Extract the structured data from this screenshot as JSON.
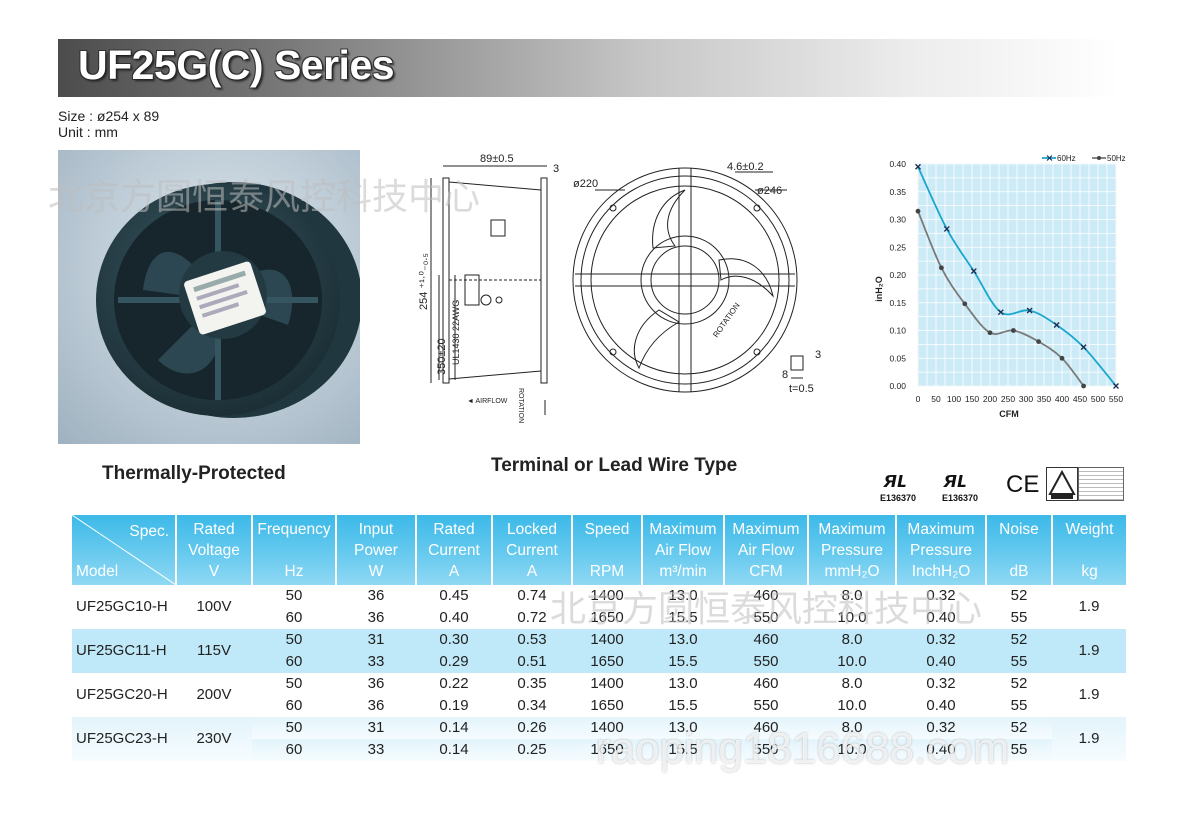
{
  "header": {
    "title": "UF25G(C) Series"
  },
  "size_info": {
    "size": "Size : ø254 x 89",
    "unit": "Unit : mm"
  },
  "captions": {
    "photo": "Thermally-Protected",
    "drawing": "Terminal or Lead Wire Type"
  },
  "drawing": {
    "side": {
      "depth": "89±0.5",
      "flange": "3",
      "height": "254 ⁺¹·⁰₋₀.₅",
      "lead": "350±20",
      "wire": "UL1430 22AWG",
      "airflow": "◄ AIRFLOW",
      "rotation": "ROTATION"
    },
    "front": {
      "hole": "4.6±0.2",
      "d220": "ø220",
      "d246": "ø246",
      "rotation": "ROTATION",
      "tab_w": "8",
      "tab_h": "3",
      "thickness": "t=0.5"
    }
  },
  "certifications": {
    "ul_file_1": "E136370",
    "ul_file_2": "E136370",
    "ce": "CE"
  },
  "watermark": {
    "cn": "北京方圆恒泰风控科技中心",
    "url": "raoping1816688.com"
  },
  "chart_data": {
    "type": "line",
    "title": "",
    "xlabel": "CFM",
    "ylabel": "inH₂O",
    "xlim": [
      0,
      550
    ],
    "ylim": [
      0,
      0.4
    ],
    "xticks": [
      0,
      50,
      100,
      150,
      200,
      250,
      300,
      350,
      400,
      450,
      500,
      550
    ],
    "yticks": [
      0.0,
      0.05,
      0.1,
      0.15,
      0.2,
      0.25,
      0.3,
      0.35,
      0.4
    ],
    "grid": true,
    "legend": "top-right",
    "series": [
      {
        "name": "60Hz",
        "color": "#1aa7cf",
        "marker": "x",
        "x": [
          0,
          80,
          155,
          230,
          310,
          385,
          460,
          550
        ],
        "y": [
          0.395,
          0.283,
          0.207,
          0.133,
          0.136,
          0.11,
          0.07,
          0.0
        ]
      },
      {
        "name": "50Hz",
        "color": "#7a7a7a",
        "marker": "o",
        "x": [
          0,
          65,
          130,
          200,
          265,
          335,
          400,
          460
        ],
        "y": [
          0.315,
          0.213,
          0.148,
          0.096,
          0.1,
          0.08,
          0.05,
          0.0
        ]
      }
    ]
  },
  "table": {
    "corner": {
      "spec": "Spec.",
      "model": "Model"
    },
    "columns": [
      {
        "top": "Rated",
        "mid": "Voltage",
        "unit": "V"
      },
      {
        "top": "Frequency",
        "mid": "",
        "unit": "Hz"
      },
      {
        "top": "Input",
        "mid": "Power",
        "unit": "W"
      },
      {
        "top": "Rated",
        "mid": "Current",
        "unit": "A"
      },
      {
        "top": "Locked",
        "mid": "Current",
        "unit": "A"
      },
      {
        "top": "Speed",
        "mid": "",
        "unit": "RPM"
      },
      {
        "top": "Maximum",
        "mid": "Air Flow",
        "unit": "m³/min"
      },
      {
        "top": "Maximum",
        "mid": "Air Flow",
        "unit": "CFM"
      },
      {
        "top": "Maximum",
        "mid": "Pressure",
        "unit": "mmH₂O"
      },
      {
        "top": "Maximum",
        "mid": "Pressure",
        "unit": "InchH₂O"
      },
      {
        "top": "Noise",
        "mid": "",
        "unit": "dB"
      },
      {
        "top": "Weight",
        "mid": "",
        "unit": "kg"
      }
    ],
    "models": [
      {
        "model": "UF25GC10-H",
        "voltage": "100V",
        "weight": "1.9",
        "rows": [
          [
            "50",
            "36",
            "0.45",
            "0.74",
            "1400",
            "13.0",
            "460",
            "8.0",
            "0.32",
            "52"
          ],
          [
            "60",
            "36",
            "0.40",
            "0.72",
            "1650",
            "15.5",
            "550",
            "10.0",
            "0.40",
            "55"
          ]
        ]
      },
      {
        "model": "UF25GC11-H",
        "voltage": "115V",
        "weight": "1.9",
        "rows": [
          [
            "50",
            "31",
            "0.30",
            "0.53",
            "1400",
            "13.0",
            "460",
            "8.0",
            "0.32",
            "52"
          ],
          [
            "60",
            "33",
            "0.29",
            "0.51",
            "1650",
            "15.5",
            "550",
            "10.0",
            "0.40",
            "55"
          ]
        ]
      },
      {
        "model": "UF25GC20-H",
        "voltage": "200V",
        "weight": "1.9",
        "rows": [
          [
            "50",
            "36",
            "0.22",
            "0.35",
            "1400",
            "13.0",
            "460",
            "8.0",
            "0.32",
            "52"
          ],
          [
            "60",
            "36",
            "0.19",
            "0.34",
            "1650",
            "15.5",
            "550",
            "10.0",
            "0.40",
            "55"
          ]
        ]
      },
      {
        "model": "UF25GC23-H",
        "voltage": "230V",
        "weight": "1.9",
        "rows": [
          [
            "50",
            "31",
            "0.14",
            "0.26",
            "1400",
            "13.0",
            "460",
            "8.0",
            "0.32",
            "52"
          ],
          [
            "60",
            "33",
            "0.14",
            "0.25",
            "1650",
            "15.5",
            "550",
            "10.0",
            "0.40",
            "55"
          ]
        ]
      }
    ]
  }
}
